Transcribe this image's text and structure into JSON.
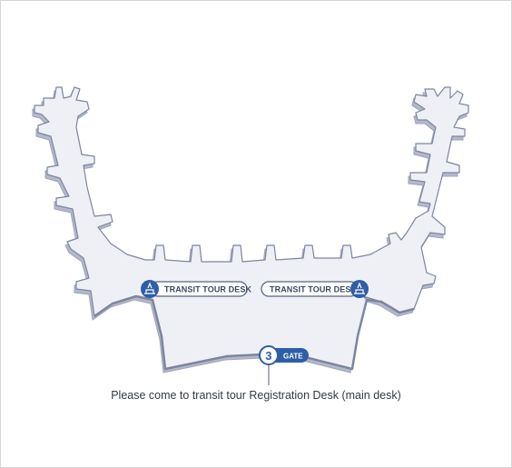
{
  "map": {
    "desk_left_label": "TRANSIT TOUR DESK",
    "desk_right_label": "TRANSIT TOUR DESK",
    "gate_number": "3",
    "gate_label": "GATE",
    "caption": "Please come to transit tour Registration Desk (main desk)"
  },
  "colors": {
    "terminal_fill": "#eef0f6",
    "terminal_outline": "#8890a8",
    "terminal_shadow": "#b4b9c9",
    "accent_blue": "#2f5ea8"
  },
  "icons": {
    "desk_icon": "tour-desk-icon"
  }
}
